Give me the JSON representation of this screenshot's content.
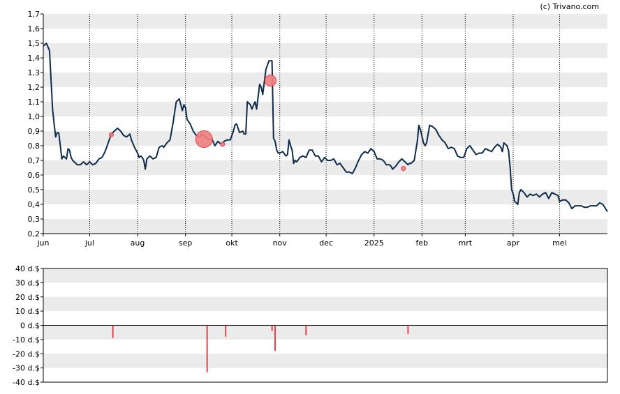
{
  "credit": "(c) Trivano.com",
  "colors": {
    "line": "#0d2b4a",
    "band": "#ebebeb",
    "marker": "#e8404b",
    "marker_fill": "#f08080"
  },
  "chart_data": [
    {
      "type": "line",
      "ylim": [
        0.2,
        1.7
      ],
      "y_ticks": [
        0.2,
        0.3,
        0.4,
        0.5,
        0.6,
        0.7,
        0.8,
        0.9,
        1.0,
        1.1,
        1.2,
        1.3,
        1.4,
        1.5,
        1.6,
        1.7
      ],
      "y_tick_labels": [
        "0,2",
        "0,3",
        "0,4",
        "0,5",
        "0,6",
        "0,7",
        "0,8",
        "0,9",
        "1,0",
        "1,1",
        "1,2",
        "1,3",
        "1,4",
        "1,5",
        "1,6",
        "1,7"
      ],
      "x_months": [
        {
          "label": "jun",
          "day": 0
        },
        {
          "label": "jul",
          "day": 30
        },
        {
          "label": "aug",
          "day": 61
        },
        {
          "label": "sep",
          "day": 92
        },
        {
          "label": "okt",
          "day": 122
        },
        {
          "label": "nov",
          "day": 153
        },
        {
          "label": "dec",
          "day": 183
        },
        {
          "label": "2025",
          "day": 214
        },
        {
          "label": "feb",
          "day": 245
        },
        {
          "label": "mrt",
          "day": 273
        },
        {
          "label": "apr",
          "day": 304
        },
        {
          "label": "mei",
          "day": 334
        }
      ],
      "x_range_days": [
        0,
        365
      ],
      "grid": "dotted vertical at month starts, alternating horizontal bands",
      "series": [
        {
          "points": [
            [
              0,
              1.48
            ],
            [
              2,
              1.5
            ],
            [
              4,
              1.45
            ],
            [
              5,
              1.25
            ],
            [
              6,
              1.05
            ],
            [
              7,
              0.95
            ],
            [
              8,
              0.86
            ],
            [
              9,
              0.89
            ],
            [
              10,
              0.89
            ],
            [
              11,
              0.8
            ],
            [
              12,
              0.71
            ],
            [
              13,
              0.73
            ],
            [
              14,
              0.72
            ],
            [
              15,
              0.71
            ],
            [
              16,
              0.78
            ],
            [
              17,
              0.77
            ],
            [
              18,
              0.72
            ],
            [
              19,
              0.7
            ],
            [
              20,
              0.69
            ],
            [
              22,
              0.67
            ],
            [
              24,
              0.67
            ],
            [
              26,
              0.69
            ],
            [
              28,
              0.67
            ],
            [
              30,
              0.69
            ],
            [
              32,
              0.67
            ],
            [
              34,
              0.68
            ],
            [
              36,
              0.71
            ],
            [
              38,
              0.72
            ],
            [
              40,
              0.76
            ],
            [
              42,
              0.82
            ],
            [
              44,
              0.88
            ],
            [
              46,
              0.9
            ],
            [
              48,
              0.92
            ],
            [
              50,
              0.9
            ],
            [
              52,
              0.87
            ],
            [
              54,
              0.86
            ],
            [
              56,
              0.88
            ],
            [
              57,
              0.84
            ],
            [
              59,
              0.79
            ],
            [
              61,
              0.75
            ],
            [
              62,
              0.72
            ],
            [
              63,
              0.73
            ],
            [
              64,
              0.72
            ],
            [
              65,
              0.7
            ],
            [
              66,
              0.64
            ],
            [
              67,
              0.71
            ],
            [
              69,
              0.73
            ],
            [
              71,
              0.71
            ],
            [
              73,
              0.72
            ],
            [
              75,
              0.79
            ],
            [
              77,
              0.8
            ],
            [
              78,
              0.79
            ],
            [
              80,
              0.82
            ],
            [
              82,
              0.84
            ],
            [
              84,
              0.96
            ],
            [
              86,
              1.1
            ],
            [
              88,
              1.12
            ],
            [
              89,
              1.08
            ],
            [
              90,
              1.04
            ],
            [
              91,
              1.08
            ],
            [
              92,
              1.06
            ],
            [
              93,
              0.98
            ],
            [
              95,
              0.95
            ],
            [
              97,
              0.9
            ],
            [
              99,
              0.87
            ],
            [
              101,
              0.86
            ],
            [
              103,
              0.88
            ],
            [
              105,
              0.86
            ],
            [
              107,
              0.84
            ],
            [
              109,
              0.85
            ],
            [
              111,
              0.8
            ],
            [
              113,
              0.83
            ],
            [
              115,
              0.81
            ],
            [
              117,
              0.83
            ],
            [
              119,
              0.84
            ],
            [
              121,
              0.84
            ],
            [
              123,
              0.9
            ],
            [
              124,
              0.94
            ],
            [
              125,
              0.95
            ],
            [
              127,
              0.89
            ],
            [
              129,
              0.9
            ],
            [
              130,
              0.88
            ],
            [
              131,
              0.88
            ],
            [
              132,
              1.1
            ],
            [
              134,
              1.08
            ],
            [
              135,
              1.05
            ],
            [
              137,
              1.1
            ],
            [
              138,
              1.05
            ],
            [
              140,
              1.22
            ],
            [
              141,
              1.2
            ],
            [
              142,
              1.15
            ],
            [
              144,
              1.32
            ],
            [
              146,
              1.38
            ],
            [
              148,
              1.38
            ],
            [
              149,
              0.85
            ],
            [
              150,
              0.83
            ],
            [
              151,
              0.77
            ],
            [
              152,
              0.75
            ],
            [
              153,
              0.75
            ],
            [
              155,
              0.76
            ],
            [
              157,
              0.73
            ],
            [
              158,
              0.74
            ],
            [
              159,
              0.84
            ],
            [
              160,
              0.8
            ],
            [
              161,
              0.77
            ],
            [
              162,
              0.68
            ],
            [
              163,
              0.7
            ],
            [
              164,
              0.69
            ],
            [
              166,
              0.72
            ],
            [
              168,
              0.73
            ],
            [
              170,
              0.72
            ],
            [
              172,
              0.77
            ],
            [
              174,
              0.77
            ],
            [
              176,
              0.73
            ],
            [
              178,
              0.73
            ],
            [
              180,
              0.69
            ],
            [
              182,
              0.72
            ],
            [
              184,
              0.7
            ],
            [
              186,
              0.7
            ],
            [
              188,
              0.71
            ],
            [
              190,
              0.67
            ],
            [
              192,
              0.68
            ],
            [
              194,
              0.65
            ],
            [
              196,
              0.62
            ],
            [
              198,
              0.62
            ],
            [
              200,
              0.61
            ],
            [
              202,
              0.65
            ],
            [
              204,
              0.7
            ],
            [
              206,
              0.74
            ],
            [
              208,
              0.76
            ],
            [
              210,
              0.75
            ],
            [
              212,
              0.78
            ],
            [
              214,
              0.76
            ],
            [
              216,
              0.71
            ],
            [
              218,
              0.71
            ],
            [
              220,
              0.7
            ],
            [
              222,
              0.67
            ],
            [
              224,
              0.67
            ],
            [
              225,
              0.66
            ],
            [
              226,
              0.64
            ],
            [
              227,
              0.65
            ],
            [
              228,
              0.66
            ],
            [
              230,
              0.69
            ],
            [
              232,
              0.71
            ],
            [
              234,
              0.69
            ],
            [
              236,
              0.67
            ],
            [
              237,
              0.68
            ],
            [
              238,
              0.68
            ],
            [
              240,
              0.7
            ],
            [
              242,
              0.83
            ],
            [
              243,
              0.94
            ],
            [
              244,
              0.91
            ],
            [
              246,
              0.82
            ],
            [
              247,
              0.8
            ],
            [
              248,
              0.82
            ],
            [
              250,
              0.94
            ],
            [
              252,
              0.93
            ],
            [
              254,
              0.91
            ],
            [
              256,
              0.87
            ],
            [
              258,
              0.84
            ],
            [
              260,
              0.82
            ],
            [
              262,
              0.78
            ],
            [
              264,
              0.79
            ],
            [
              266,
              0.78
            ],
            [
              268,
              0.73
            ],
            [
              270,
              0.72
            ],
            [
              272,
              0.72
            ],
            [
              274,
              0.78
            ],
            [
              276,
              0.8
            ],
            [
              278,
              0.77
            ],
            [
              280,
              0.74
            ],
            [
              282,
              0.75
            ],
            [
              284,
              0.75
            ],
            [
              286,
              0.78
            ],
            [
              288,
              0.77
            ],
            [
              290,
              0.76
            ],
            [
              292,
              0.79
            ],
            [
              294,
              0.81
            ],
            [
              296,
              0.79
            ],
            [
              297,
              0.76
            ],
            [
              298,
              0.82
            ],
            [
              300,
              0.8
            ],
            [
              301,
              0.77
            ],
            [
              302,
              0.66
            ],
            [
              303,
              0.5
            ],
            [
              304,
              0.47
            ],
            [
              305,
              0.42
            ],
            [
              307,
              0.4
            ],
            [
              308,
              0.48
            ],
            [
              309,
              0.5
            ],
            [
              311,
              0.48
            ],
            [
              313,
              0.45
            ],
            [
              315,
              0.47
            ],
            [
              317,
              0.46
            ],
            [
              319,
              0.47
            ],
            [
              321,
              0.45
            ],
            [
              323,
              0.47
            ],
            [
              325,
              0.48
            ],
            [
              327,
              0.44
            ],
            [
              329,
              0.48
            ],
            [
              331,
              0.47
            ],
            [
              333,
              0.46
            ],
            [
              334,
              0.42
            ],
            [
              336,
              0.43
            ],
            [
              338,
              0.43
            ],
            [
              340,
              0.41
            ],
            [
              342,
              0.37
            ],
            [
              344,
              0.39
            ],
            [
              346,
              0.39
            ],
            [
              348,
              0.39
            ],
            [
              350,
              0.38
            ],
            [
              352,
              0.38
            ],
            [
              354,
              0.39
            ],
            [
              356,
              0.39
            ],
            [
              358,
              0.39
            ],
            [
              360,
              0.41
            ],
            [
              362,
              0.4
            ],
            [
              365,
              0.35
            ]
          ]
        }
      ],
      "markers": [
        {
          "day": 44,
          "y": 0.875,
          "size": "small"
        },
        {
          "day": 104,
          "y": 0.845,
          "size": "large"
        },
        {
          "day": 116,
          "y": 0.81,
          "size": "small"
        },
        {
          "day": 147,
          "y": 1.245,
          "size": "medium"
        },
        {
          "day": 233,
          "y": 0.645,
          "size": "small"
        }
      ]
    },
    {
      "type": "bar",
      "ylim": [
        -40,
        40
      ],
      "y_ticks": [
        -40,
        -30,
        -20,
        -10,
        0,
        10,
        20,
        30,
        40
      ],
      "y_tick_labels": [
        "-40 d.$",
        "-30 d.$",
        "-20 d.$",
        "-10 d.$",
        "0 d.$",
        "10 d.$",
        "20 d.$",
        "30 d.$",
        "40 d.$"
      ],
      "bars": [
        {
          "day": 45,
          "value": -9
        },
        {
          "day": 106,
          "value": -33
        },
        {
          "day": 118,
          "value": -8
        },
        {
          "day": 148,
          "value": -4
        },
        {
          "day": 150,
          "value": -18
        },
        {
          "day": 170,
          "value": -7
        },
        {
          "day": 236,
          "value": -6
        }
      ]
    }
  ]
}
